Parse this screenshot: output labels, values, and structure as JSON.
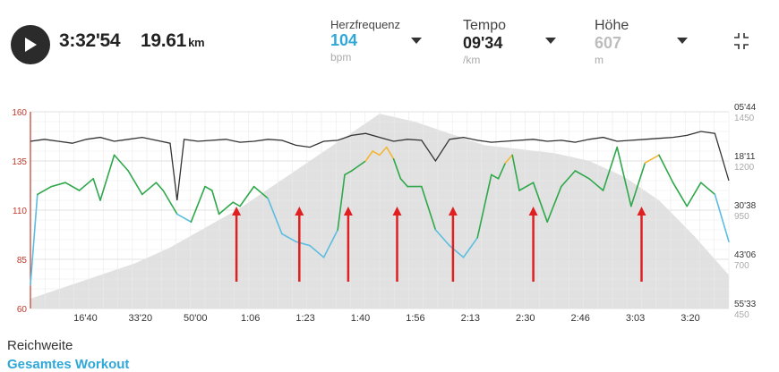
{
  "summary": {
    "duration": "3:32'54",
    "distance_value": "19.61",
    "distance_unit": "km"
  },
  "metrics": [
    {
      "label": "Herzfrequenz",
      "value": "104",
      "unit": "bpm",
      "color": "#2fa8d8"
    },
    {
      "label": "Tempo",
      "value": "09'34",
      "unit": "/km",
      "color": "#222222"
    },
    {
      "label": "Höhe",
      "value": "607",
      "unit": "m",
      "color": "#bdbdbd"
    }
  ],
  "icons": {
    "play": "play-icon",
    "caret": "chevron-down-icon",
    "collapse": "collapse-icon"
  },
  "chart_data": {
    "type": "line",
    "x_ticks": [
      "16'40",
      "33'20",
      "50'00",
      "1:06",
      "1:23",
      "1:40",
      "1:56",
      "2:13",
      "2:30",
      "2:46",
      "3:03",
      "3:20"
    ],
    "y_left_ticks": [
      "160",
      "135",
      "110",
      "85",
      "60"
    ],
    "y_right_pace_ticks": [
      "05'44",
      "18'11",
      "30'38",
      "43'06",
      "55'33"
    ],
    "y_right_alt_ticks": [
      "1450",
      "1200",
      "950",
      "700",
      "450"
    ],
    "heart_rate_ylim": [
      60,
      160
    ],
    "altitude_ylim": [
      450,
      1450
    ],
    "grid": true,
    "zone_colors": {
      "below_110": "#5bbde0",
      "110_135": "#2ea84a",
      "135_145": "#f3b733",
      "above_145": "#e0702a",
      "pace": "#333333",
      "elevation_fill": "#e1e1e1",
      "left_axis": "#c0392b",
      "arrow": "#e02020"
    },
    "series": [
      {
        "x": [
          0,
          0.01,
          0.03,
          0.05,
          0.07,
          0.09,
          0.1,
          0.12,
          0.14,
          0.16,
          0.18,
          0.19,
          0.21,
          0.23,
          0.25,
          0.26,
          0.27,
          0.29,
          0.3,
          0.32,
          0.34,
          0.36,
          0.38,
          0.4,
          0.42,
          0.44,
          0.45,
          0.46,
          0.48,
          0.49,
          0.5,
          0.51,
          0.52,
          0.53,
          0.54,
          0.56,
          0.58,
          0.6,
          0.62,
          0.64,
          0.66,
          0.67,
          0.68,
          0.69,
          0.7,
          0.72,
          0.74,
          0.76,
          0.78,
          0.8,
          0.82,
          0.84,
          0.86,
          0.88,
          0.9,
          0.92,
          0.94,
          0.96,
          0.98,
          1.0
        ],
        "values": [
          72,
          118,
          122,
          124,
          120,
          126,
          115,
          138,
          130,
          118,
          124,
          120,
          108,
          104,
          122,
          120,
          108,
          114,
          112,
          122,
          116,
          98,
          94,
          92,
          86,
          100,
          128,
          130,
          135,
          140,
          138,
          142,
          136,
          126,
          122,
          122,
          100,
          92,
          86,
          96,
          128,
          126,
          134,
          138,
          120,
          124,
          104,
          122,
          130,
          126,
          120,
          142,
          112,
          134,
          138,
          124,
          112,
          124,
          118,
          94
        ]
      },
      {
        "x": [
          0,
          0.02,
          0.04,
          0.06,
          0.08,
          0.1,
          0.12,
          0.14,
          0.16,
          0.18,
          0.2,
          0.21,
          0.22,
          0.24,
          0.26,
          0.28,
          0.3,
          0.32,
          0.34,
          0.36,
          0.38,
          0.4,
          0.42,
          0.44,
          0.46,
          0.48,
          0.5,
          0.52,
          0.54,
          0.56,
          0.58,
          0.6,
          0.62,
          0.64,
          0.66,
          0.68,
          0.7,
          0.72,
          0.74,
          0.76,
          0.78,
          0.8,
          0.82,
          0.84,
          0.86,
          0.88,
          0.9,
          0.92,
          0.94,
          0.96,
          0.98,
          1.0
        ],
        "values": [
          1300,
          1310,
          1300,
          1290,
          1310,
          1320,
          1300,
          1310,
          1320,
          1305,
          1290,
          1000,
          1310,
          1300,
          1305,
          1310,
          1295,
          1300,
          1310,
          1305,
          1280,
          1270,
          1300,
          1305,
          1330,
          1340,
          1320,
          1300,
          1310,
          1305,
          1200,
          1310,
          1320,
          1305,
          1295,
          1300,
          1305,
          1310,
          1300,
          1305,
          1295,
          1310,
          1320,
          1300,
          1305,
          1310,
          1315,
          1320,
          1330,
          1350,
          1340,
          1100
        ]
      },
      {
        "x": [
          0,
          0.05,
          0.1,
          0.15,
          0.2,
          0.25,
          0.3,
          0.35,
          0.4,
          0.45,
          0.5,
          0.55,
          0.6,
          0.65,
          0.7,
          0.75,
          0.8,
          0.85,
          0.9,
          0.95,
          1.0
        ],
        "values": [
          500,
          560,
          620,
          680,
          760,
          860,
          960,
          1080,
          1200,
          1320,
          1440,
          1400,
          1340,
          1280,
          1260,
          1240,
          1200,
          1120,
          1000,
          820,
          620
        ]
      }
    ],
    "arrows_x": [
      0.295,
      0.385,
      0.455,
      0.525,
      0.605,
      0.72,
      0.875
    ],
    "title": "",
    "xlabel": "",
    "ylabel": ""
  },
  "footer": {
    "range_label": "Reichweite",
    "range_value": "Gesamtes Workout"
  }
}
